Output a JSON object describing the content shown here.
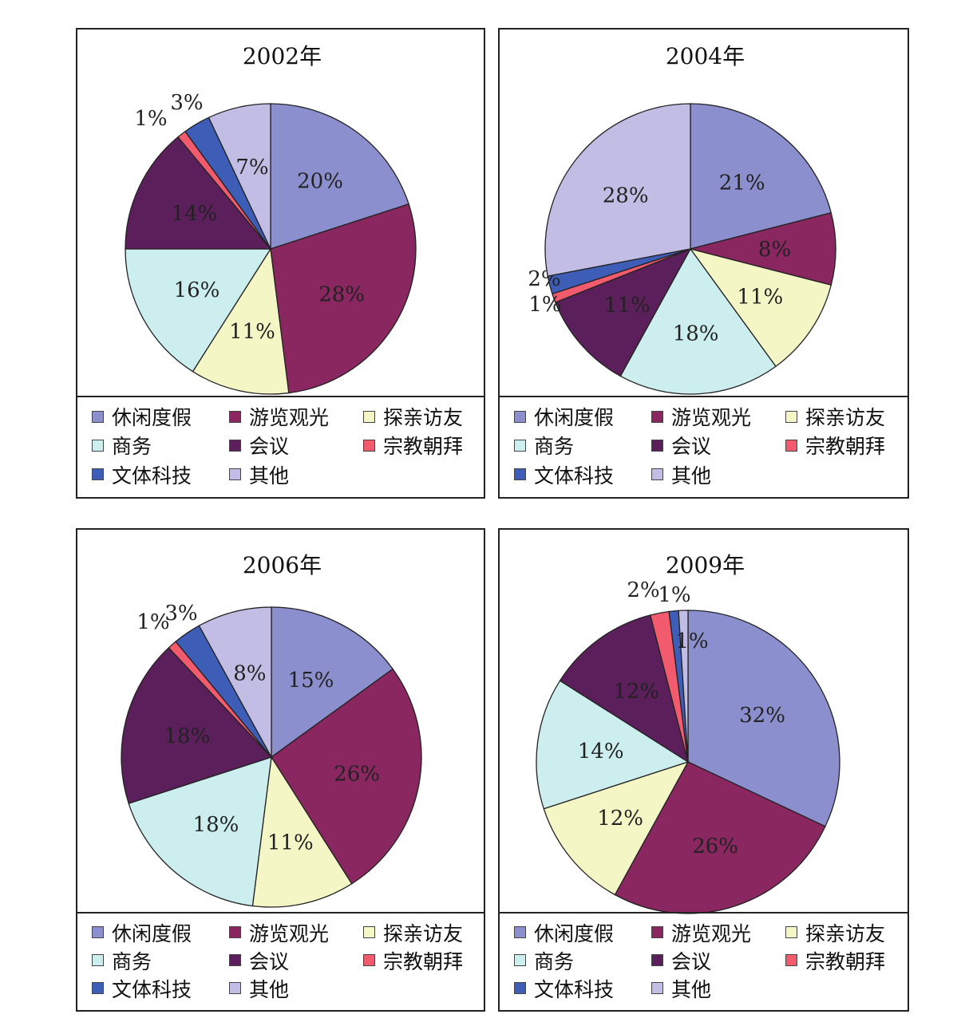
{
  "legend_categories": [
    "休闲度假",
    "游览观光",
    "探亲访友",
    "商务",
    "会议",
    "宗教朝拜",
    "文体科技",
    "其他"
  ],
  "colors": [
    "#8c8fcd",
    "#8a2761",
    "#f5f6c6",
    "#cdeeee",
    "#5b1f5b",
    "#f25b6d",
    "#3e5db6",
    "#c2bde4"
  ],
  "chart_data": [
    {
      "type": "pie",
      "title": "2002年",
      "categories": [
        "休闲度假",
        "游览观光",
        "探亲访友",
        "商务",
        "会议",
        "宗教朝拜",
        "文体科技",
        "其他"
      ],
      "values": [
        20,
        28,
        11,
        16,
        14,
        1,
        3,
        7
      ],
      "labels": [
        "20%",
        "28%",
        "11%",
        "16%",
        "14%",
        "1%",
        "3%",
        "7%"
      ]
    },
    {
      "type": "pie",
      "title": "2004年",
      "categories": [
        "休闲度假",
        "游览观光",
        "探亲访友",
        "商务",
        "会议",
        "宗教朝拜",
        "文体科技",
        "其他"
      ],
      "values": [
        21,
        8,
        11,
        18,
        11,
        1,
        2,
        28
      ],
      "labels": [
        "21%",
        "8%",
        "11%",
        "18%",
        "11%",
        "1%",
        "2%",
        "28%"
      ]
    },
    {
      "type": "pie",
      "title": "2006年",
      "categories": [
        "休闲度假",
        "游览观光",
        "探亲访友",
        "商务",
        "会议",
        "宗教朝拜",
        "文体科技",
        "其他"
      ],
      "values": [
        15,
        26,
        11,
        18,
        18,
        1,
        3,
        8
      ],
      "labels": [
        "15%",
        "26%",
        "11%",
        "18%",
        "18%",
        "1%",
        "3%",
        "8%"
      ]
    },
    {
      "type": "pie",
      "title": "2009年",
      "categories": [
        "休闲度假",
        "游览观光",
        "探亲访友",
        "商务",
        "会议",
        "宗教朝拜",
        "文体科技",
        "其他"
      ],
      "values": [
        32,
        26,
        12,
        14,
        12,
        2,
        1,
        1
      ],
      "labels": [
        "32%",
        "26%",
        "12%",
        "14%",
        "12%",
        "2%",
        "1%",
        "1%"
      ]
    }
  ]
}
